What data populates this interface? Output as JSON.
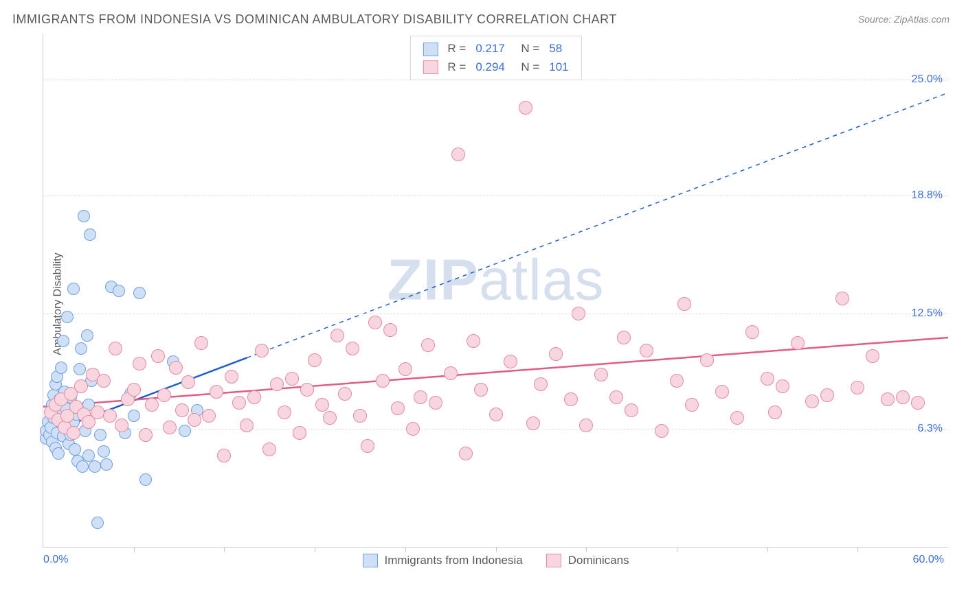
{
  "title": "IMMIGRANTS FROM INDONESIA VS DOMINICAN AMBULATORY DISABILITY CORRELATION CHART",
  "source_label": "Source: ZipAtlas.com",
  "ylabel": "Ambulatory Disability",
  "watermark": {
    "bold": "ZIP",
    "light": "atlas"
  },
  "axes": {
    "xmin": 0.0,
    "xmax": 60.0,
    "ymin": 0.0,
    "ymax": 27.5,
    "xmin_label": "0.0%",
    "xmax_label": "60.0%",
    "ygrid": [
      {
        "v": 6.3,
        "label": "6.3%"
      },
      {
        "v": 12.5,
        "label": "12.5%"
      },
      {
        "v": 18.8,
        "label": "18.8%"
      },
      {
        "v": 25.0,
        "label": "25.0%"
      }
    ],
    "xticks": [
      6,
      12,
      18,
      24,
      30,
      36,
      42,
      48,
      54
    ],
    "axis_color": "#cccccc",
    "grid_color": "#dddddd",
    "tick_label_color": "#3b6fd6",
    "tick_fontsize": 16
  },
  "series": [
    {
      "id": "indonesia",
      "label": "Immigrants from Indonesia",
      "R": "0.217",
      "N": "58",
      "marker_fill": "#cfe0f6",
      "marker_stroke": "#6d9fe3",
      "marker_radius": 9,
      "line_color": "#1f5ecf",
      "line_width": 2.5,
      "solid_until_x": 13.5,
      "trend": {
        "x0": 0,
        "y0": 6.0,
        "x1": 60,
        "y1": 24.3
      },
      "points": [
        [
          0.2,
          5.8
        ],
        [
          0.2,
          6.2
        ],
        [
          0.3,
          6.7
        ],
        [
          0.4,
          6.0
        ],
        [
          0.5,
          7.2
        ],
        [
          0.5,
          6.4
        ],
        [
          0.6,
          5.6
        ],
        [
          0.6,
          7.6
        ],
        [
          0.7,
          6.9
        ],
        [
          0.7,
          8.1
        ],
        [
          0.8,
          5.3
        ],
        [
          0.8,
          8.7
        ],
        [
          0.9,
          9.1
        ],
        [
          0.9,
          6.1
        ],
        [
          1.0,
          7.0
        ],
        [
          1.0,
          5.0
        ],
        [
          1.1,
          7.9
        ],
        [
          1.2,
          6.6
        ],
        [
          1.2,
          9.6
        ],
        [
          1.3,
          11.0
        ],
        [
          1.3,
          5.9
        ],
        [
          1.4,
          8.3
        ],
        [
          1.5,
          6.3
        ],
        [
          1.5,
          7.4
        ],
        [
          1.6,
          12.3
        ],
        [
          1.7,
          5.5
        ],
        [
          1.8,
          6.0
        ],
        [
          1.8,
          8.0
        ],
        [
          2.0,
          13.8
        ],
        [
          2.0,
          6.7
        ],
        [
          2.1,
          5.2
        ],
        [
          2.2,
          7.1
        ],
        [
          2.3,
          4.6
        ],
        [
          2.4,
          9.5
        ],
        [
          2.5,
          10.6
        ],
        [
          2.6,
          4.3
        ],
        [
          2.7,
          17.7
        ],
        [
          2.8,
          6.2
        ],
        [
          2.9,
          11.3
        ],
        [
          3.0,
          7.6
        ],
        [
          3.0,
          4.9
        ],
        [
          3.1,
          16.7
        ],
        [
          3.2,
          8.9
        ],
        [
          3.4,
          4.3
        ],
        [
          3.6,
          1.3
        ],
        [
          3.8,
          6.0
        ],
        [
          4.0,
          5.1
        ],
        [
          4.2,
          4.4
        ],
        [
          4.5,
          13.9
        ],
        [
          5.0,
          13.7
        ],
        [
          5.4,
          6.1
        ],
        [
          5.8,
          8.2
        ],
        [
          6.0,
          7.0
        ],
        [
          6.4,
          13.6
        ],
        [
          6.8,
          3.6
        ],
        [
          8.6,
          9.9
        ],
        [
          9.4,
          6.2
        ],
        [
          10.2,
          7.3
        ]
      ]
    },
    {
      "id": "dominicans",
      "label": "Dominicans",
      "R": "0.294",
      "N": "101",
      "marker_fill": "#f8d6df",
      "marker_stroke": "#e68aa3",
      "marker_radius": 10,
      "line_color": "#e35a85",
      "line_width": 2.5,
      "solid_until_x": 60,
      "trend": {
        "x0": 0,
        "y0": 7.5,
        "x1": 60,
        "y1": 11.2
      },
      "points": [
        [
          0.5,
          7.2
        ],
        [
          0.8,
          7.6
        ],
        [
          1.0,
          6.8
        ],
        [
          1.2,
          7.9
        ],
        [
          1.4,
          6.4
        ],
        [
          1.6,
          7.0
        ],
        [
          1.8,
          8.2
        ],
        [
          2.0,
          6.1
        ],
        [
          2.2,
          7.5
        ],
        [
          2.5,
          8.6
        ],
        [
          2.7,
          7.1
        ],
        [
          3.0,
          6.7
        ],
        [
          3.3,
          9.2
        ],
        [
          3.6,
          7.2
        ],
        [
          4.0,
          8.9
        ],
        [
          4.4,
          7.0
        ],
        [
          4.8,
          10.6
        ],
        [
          5.2,
          6.5
        ],
        [
          5.6,
          7.9
        ],
        [
          6.0,
          8.4
        ],
        [
          6.4,
          9.8
        ],
        [
          6.8,
          6.0
        ],
        [
          7.2,
          7.6
        ],
        [
          7.6,
          10.2
        ],
        [
          8.0,
          8.1
        ],
        [
          8.4,
          6.4
        ],
        [
          8.8,
          9.6
        ],
        [
          9.2,
          7.3
        ],
        [
          9.6,
          8.8
        ],
        [
          10.0,
          6.8
        ],
        [
          10.5,
          10.9
        ],
        [
          11.0,
          7.0
        ],
        [
          11.5,
          8.3
        ],
        [
          12.0,
          4.9
        ],
        [
          12.5,
          9.1
        ],
        [
          13.0,
          7.7
        ],
        [
          13.5,
          6.5
        ],
        [
          14.0,
          8.0
        ],
        [
          14.5,
          10.5
        ],
        [
          15.0,
          5.2
        ],
        [
          15.5,
          8.7
        ],
        [
          16.0,
          7.2
        ],
        [
          16.5,
          9.0
        ],
        [
          17.0,
          6.1
        ],
        [
          17.5,
          8.4
        ],
        [
          18.0,
          10.0
        ],
        [
          18.5,
          7.6
        ],
        [
          19.0,
          6.9
        ],
        [
          19.5,
          11.3
        ],
        [
          20.0,
          8.2
        ],
        [
          20.5,
          10.6
        ],
        [
          21.0,
          7.0
        ],
        [
          21.5,
          5.4
        ],
        [
          22.0,
          12.0
        ],
        [
          22.5,
          8.9
        ],
        [
          23.0,
          11.6
        ],
        [
          23.5,
          7.4
        ],
        [
          24.0,
          9.5
        ],
        [
          24.5,
          6.3
        ],
        [
          25.0,
          8.0
        ],
        [
          25.5,
          10.8
        ],
        [
          26.0,
          7.7
        ],
        [
          27.0,
          9.3
        ],
        [
          27.5,
          21.0
        ],
        [
          28.0,
          5.0
        ],
        [
          28.5,
          11.0
        ],
        [
          29.0,
          8.4
        ],
        [
          30.0,
          7.1
        ],
        [
          31.0,
          9.9
        ],
        [
          32.0,
          23.5
        ],
        [
          32.5,
          6.6
        ],
        [
          33.0,
          8.7
        ],
        [
          34.0,
          10.3
        ],
        [
          35.0,
          7.9
        ],
        [
          35.5,
          12.5
        ],
        [
          36.0,
          6.5
        ],
        [
          37.0,
          9.2
        ],
        [
          38.0,
          8.0
        ],
        [
          38.5,
          11.2
        ],
        [
          39.0,
          7.3
        ],
        [
          40.0,
          10.5
        ],
        [
          41.0,
          6.2
        ],
        [
          42.0,
          8.9
        ],
        [
          42.5,
          13.0
        ],
        [
          43.0,
          7.6
        ],
        [
          44.0,
          10.0
        ],
        [
          45.0,
          8.3
        ],
        [
          46.0,
          6.9
        ],
        [
          47.0,
          11.5
        ],
        [
          48.0,
          9.0
        ],
        [
          48.5,
          7.2
        ],
        [
          49.0,
          8.6
        ],
        [
          50.0,
          10.9
        ],
        [
          51.0,
          7.8
        ],
        [
          52.0,
          8.1
        ],
        [
          53.0,
          13.3
        ],
        [
          54.0,
          8.5
        ],
        [
          55.0,
          10.2
        ],
        [
          56.0,
          7.9
        ],
        [
          57.0,
          8.0
        ],
        [
          58.0,
          7.7
        ]
      ]
    }
  ]
}
